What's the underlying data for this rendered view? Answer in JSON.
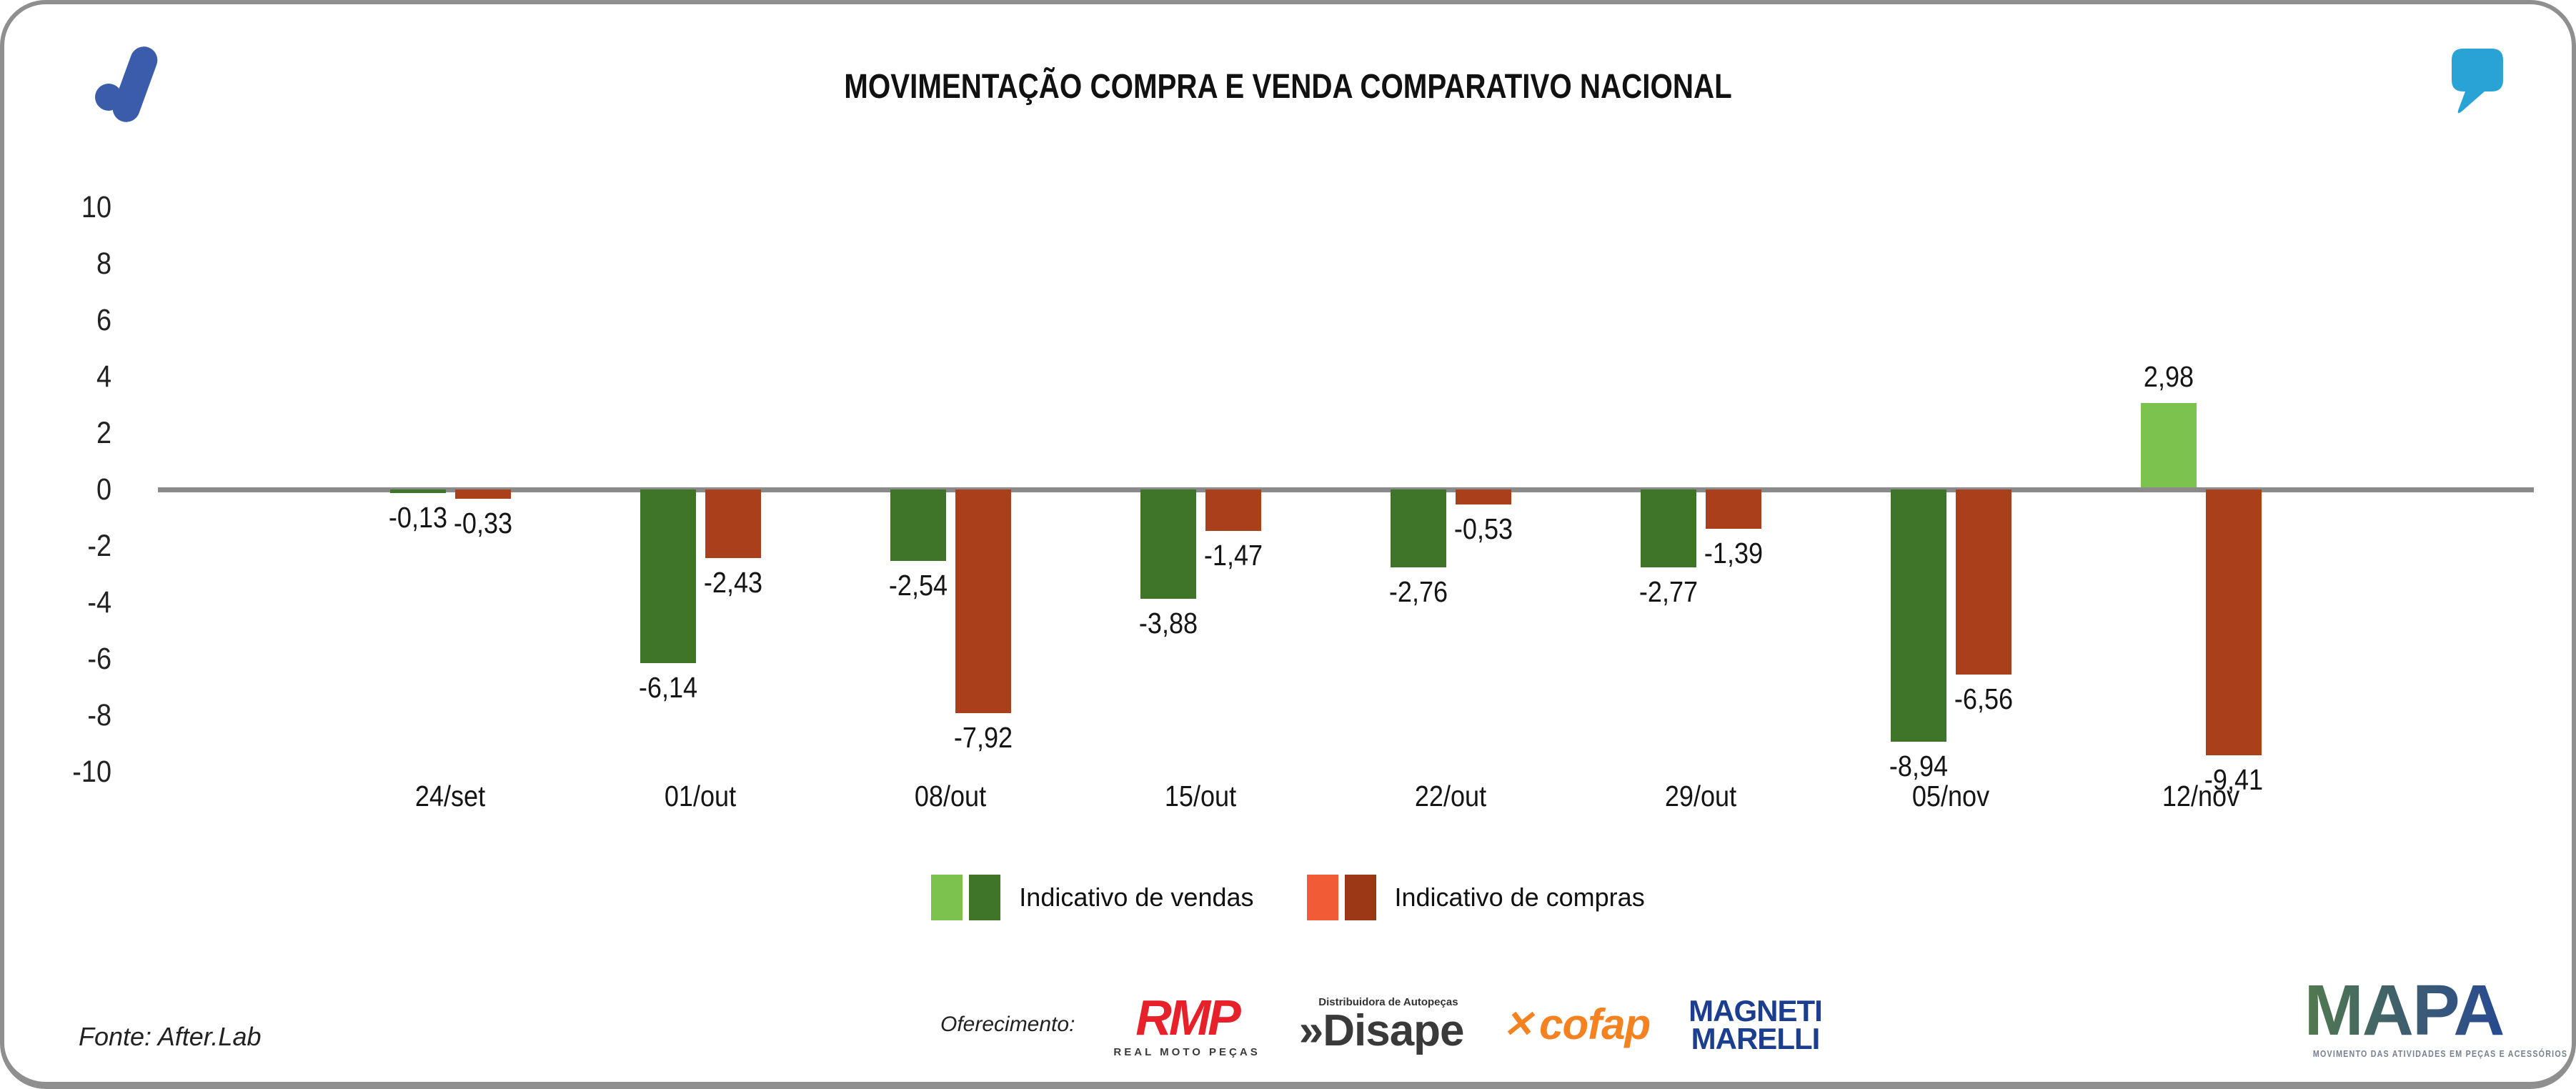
{
  "header": {
    "title": "MOVIMENTAÇÃO COMPRA E VENDA COMPARATIVO NACIONAL"
  },
  "brand": {
    "after_lab_blue": "#3b5cab",
    "quote_cyan": "#29a3d6"
  },
  "chart_data": {
    "type": "bar",
    "title": "MOVIMENTAÇÃO COMPRA E VENDA COMPARATIVO NACIONAL",
    "categories": [
      "24/set",
      "01/out",
      "08/out",
      "15/out",
      "22/out",
      "29/out",
      "05/nov",
      "12/nov"
    ],
    "series": [
      {
        "name": "Indicativo de vendas",
        "values": [
          -0.13,
          -6.14,
          -2.54,
          -3.88,
          -2.76,
          -2.77,
          -8.94,
          2.98
        ],
        "labels": [
          "-0,13",
          "-6,14",
          "-2,54",
          "-3,88",
          "-2,76",
          "-2,77",
          "-8,94",
          "2,98"
        ],
        "positive_color": "#7cc24f",
        "negative_color": "#3f7529"
      },
      {
        "name": "Indicativo de compras",
        "values": [
          -0.33,
          -2.43,
          -7.92,
          -1.47,
          -0.53,
          -1.39,
          -6.56,
          -9.41
        ],
        "labels": [
          "-0,33",
          "-2,43",
          "-7,92",
          "-1,47",
          "-0,53",
          "-1,39",
          "-6,56",
          "-9,41"
        ],
        "positive_color": "#f15b35",
        "negative_color": "#aa3f1c"
      }
    ],
    "ylim": [
      -10,
      10
    ],
    "yticks": [
      10,
      8,
      6,
      4,
      2,
      0,
      -2,
      -4,
      -6,
      -8,
      -10
    ],
    "grid": false,
    "axis_color": "#8a8a8a",
    "legend_position": "bottom"
  },
  "legend": {
    "items": [
      {
        "label": "Indicativo de vendas",
        "swatches": [
          "#7cc24f",
          "#3f7529"
        ]
      },
      {
        "label": "Indicativo de compras",
        "swatches": [
          "#f15b35",
          "#9d3817"
        ]
      }
    ]
  },
  "footer": {
    "fonte": "Fonte: After.Lab",
    "oferecimento": "Oferecimento:",
    "sponsors": {
      "rmp": {
        "name": "RMP",
        "sub": "REAL MOTO PEÇAS",
        "color": "#e62129"
      },
      "disape": {
        "prefix": "»",
        "name": "Disape",
        "sub": "Distribuidora de Autopeças",
        "color": "#3a3a3a"
      },
      "cofap": {
        "x_glyph": "✕",
        "name": "cofap",
        "color": "#f58220"
      },
      "magneti": {
        "line1": "MAGNETI",
        "line2": "MARELLI",
        "color": "#1c3e8e"
      }
    },
    "mapa": {
      "name": "MAPA",
      "tagline": "MOVIMENTO DAS ATIVIDADES EM PEÇAS E ACESSÓRIOS",
      "gradient": [
        "#527a4e",
        "#3f5e6e",
        "#274a92"
      ]
    }
  }
}
